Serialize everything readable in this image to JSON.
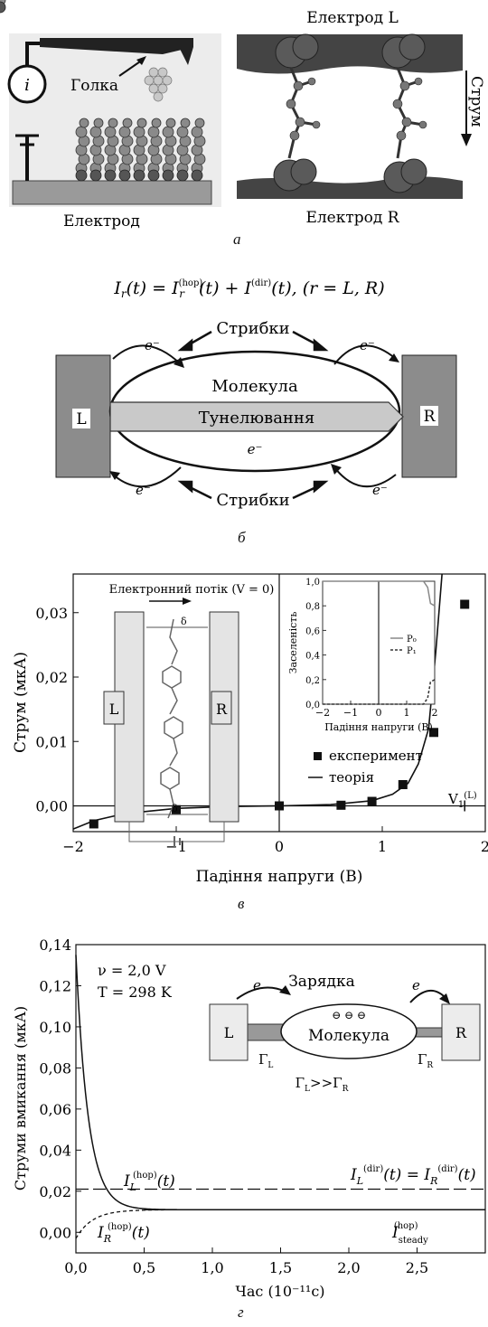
{
  "panel_a": {
    "current_symbol": "i",
    "needle_label": "Голка",
    "electrode_label": "Електрод",
    "electrode_L": "Електрод L",
    "electrode_R": "Електрод R",
    "current_label": "Струм",
    "caption": "а"
  },
  "panel_b": {
    "formula": {
      "lhs_I": "I",
      "lhs_sub": "r",
      "lhs_t": "(t) = ",
      "I1": "I",
      "I1_sup": "(hop)",
      "I1_sub": "r",
      "I1_t": "(t) + ",
      "I2": "I",
      "I2_sup": "(dir)",
      "I2_t": "(t), (r = L, R)"
    },
    "hops_top": "Стрибки",
    "hops_bottom": "Стрибки",
    "molecule": "Молекула",
    "tunneling": "Тунелювання",
    "electron": "e⁻",
    "L": "L",
    "R": "R",
    "caption": "б"
  },
  "panel_c": {
    "caption": "в",
    "inset_title": "Електронний потік (V = 0)",
    "inset_L": "L",
    "inset_R": "R",
    "inset_delta": "δ",
    "legend_experiment": "експеримент",
    "legend_theory": "теорія",
    "v_label": "V",
    "v_sub": "1",
    "v_sup": "(L)",
    "chart_data": {
      "type": "scatter",
      "xlabel": "Падіння напруги (В)",
      "ylabel": "Струм (мкА)",
      "xlim": [
        -2,
        2
      ],
      "ylim": [
        -0.004,
        0.036
      ],
      "x_ticks": [
        "−2",
        "−1",
        "0",
        "1",
        "2"
      ],
      "y_ticks": [
        "0,00",
        "0,01",
        "0,02",
        "0,03"
      ],
      "series": [
        {
          "name": "експеримент",
          "x": [
            -1.8,
            -1.5,
            -1.0,
            -0.5,
            0.0,
            0.6,
            0.9,
            1.2,
            1.5,
            1.8
          ],
          "y": [
            -0.0028,
            -0.0016,
            -0.0006,
            -0.0002,
            0.0,
            0.0001,
            0.0007,
            0.0033,
            0.0114,
            0.0313
          ]
        },
        {
          "name": "теорія",
          "x": [
            -2.0,
            -1.8,
            -1.5,
            -1.0,
            -0.5,
            0.0,
            0.5,
            0.9,
            1.1,
            1.25,
            1.35,
            1.45,
            1.52,
            1.58
          ],
          "y": [
            -0.0036,
            -0.0023,
            -0.0012,
            -0.0004,
            -0.0001,
            0.0,
            0.0002,
            0.0008,
            0.0018,
            0.0035,
            0.0065,
            0.012,
            0.024,
            0.037
          ]
        }
      ],
      "v1_marker": 1.8
    },
    "inset_chart": {
      "type": "line",
      "xlabel": "Падіння напруги (В)",
      "ylabel": "Заселеність",
      "xlim": [
        -2,
        2
      ],
      "ylim": [
        0,
        1
      ],
      "x_ticks": [
        "−2",
        "−1",
        "0",
        "1",
        "2"
      ],
      "y_ticks": [
        "0,0",
        "0,2",
        "0,4",
        "0,6",
        "0,8",
        "1,0"
      ],
      "legend": [
        "P₀",
        "P₁"
      ]
    }
  },
  "panel_d": {
    "caption": "г",
    "nu_line": "ν = 2,0 V",
    "t_line": "T = 298 K",
    "charging": "Зарядка",
    "molecule": "Молекула",
    "e": "e",
    "L": "L",
    "R": "R",
    "gammaL": "Γ",
    "gammaL_sub": "L",
    "gammaR": "Γ",
    "gammaR_sub": "R",
    "relation": "Γ",
    "relation_mid": ">>Γ",
    "chart_data": {
      "type": "line",
      "xlabel": "Час (10⁻¹¹с)",
      "ylabel": "Струми вмикання (мкА)",
      "xlim": [
        0,
        3.0
      ],
      "ylim": [
        -0.01,
        0.14
      ],
      "x_ticks": [
        "0,0",
        "0,5",
        "1,0",
        "1,5",
        "2,0",
        "2,5"
      ],
      "y_ticks": [
        "0,00",
        "0,02",
        "0,04",
        "0,06",
        "0,08",
        "0,10",
        "0,12",
        "0,14"
      ],
      "series": [
        {
          "name": "I_L^(hop)(t)",
          "type": "decay",
          "start": 0.135,
          "steady": 0.011
        },
        {
          "name": "I_R^(hop)(t)",
          "type": "rise",
          "start": -0.003,
          "steady": 0.011
        },
        {
          "name": "I_L^(dir)(t) = I_R^(dir)(t)",
          "type": "constant",
          "value": 0.021
        },
        {
          "name": "I_steady^(hop)",
          "type": "constant",
          "value": 0.011
        }
      ]
    },
    "labels": {
      "IL_hop": "I",
      "IL_hop_sub": "L",
      "IL_hop_sup": "(hop)",
      "t": "(t)",
      "IR_hop": "I",
      "IR_hop_sub": "R",
      "IR_hop_sup": "(hop)",
      "dir_I": "I",
      "dir_sub_L": "L",
      "dir_sub_R": "R",
      "dir_sup": "(dir)",
      "dir_eq": "(t) = ",
      "steady_I": "I",
      "steady_sub": "steady",
      "steady_sup": "(hop)"
    }
  }
}
